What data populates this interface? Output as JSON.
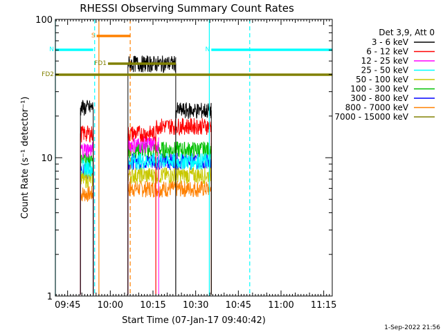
{
  "chart_data": {
    "type": "line",
    "title": "RHESSI Observing Summary Count Rates",
    "xlabel": "Start Time (07-Jan-17 09:40:42)",
    "ylabel": "Count Rate (s⁻¹ detector⁻¹)",
    "y_scale": "log",
    "ylim": [
      1,
      100
    ],
    "xlim_minutes_after_0940": [
      0.7,
      98
    ],
    "x_ticks": [
      "09:45",
      "10:00",
      "10:15",
      "10:30",
      "10:45",
      "11:00",
      "11:15"
    ],
    "y_ticks": [
      "1",
      "10",
      "100"
    ],
    "legend_header": "Det 3,9, Att 0",
    "legend_position": "right, outside plot",
    "series": [
      {
        "name": "3 - 6 keV",
        "color": "#000000",
        "segments": [
          [
            9.5,
            14.0,
            23
          ],
          [
            26.2,
            43.0,
            48
          ],
          [
            43.0,
            55.5,
            22
          ]
        ]
      },
      {
        "name": "6 - 12 keV",
        "color": "#ff0000",
        "segments": [
          [
            9.5,
            14.0,
            15
          ],
          [
            26.2,
            36.0,
            15
          ],
          [
            36.0,
            55.5,
            17
          ]
        ]
      },
      {
        "name": "12 - 25 keV",
        "color": "#ff00ff",
        "segments": [
          [
            9.5,
            14.0,
            11.5
          ],
          [
            26.2,
            37.0,
            12.5
          ]
        ]
      },
      {
        "name": "25 - 50 keV",
        "color": "#00ffff",
        "segments": [
          [
            9.5,
            14.0,
            8.5
          ],
          [
            26.2,
            55.5,
            9.5
          ]
        ]
      },
      {
        "name": "50 - 100 keV",
        "color": "#c8c800",
        "segments": [
          [
            9.5,
            14.0,
            7
          ],
          [
            26.2,
            55.5,
            7.5
          ]
        ]
      },
      {
        "name": "100 - 300 keV",
        "color": "#00c000",
        "segments": [
          [
            9.5,
            14.0,
            9.5
          ],
          [
            26.2,
            55.5,
            11.5
          ]
        ]
      },
      {
        "name": "300 - 800 keV",
        "color": "#0000ff",
        "segments": [
          [
            9.5,
            14.0,
            8
          ],
          [
            26.2,
            55.5,
            9.5
          ]
        ]
      },
      {
        "name": "800 - 7000 keV",
        "color": "#ff8000",
        "segments": [
          [
            9.5,
            14.0,
            5.5
          ],
          [
            26.2,
            55.5,
            6
          ]
        ]
      },
      {
        "name": "7000 - 15000 keV",
        "color": "#808000",
        "segments": []
      }
    ],
    "flags": [
      {
        "label": "S",
        "color": "#ff8000",
        "level": 0.94,
        "start": 15.2,
        "end": 27.0
      },
      {
        "label": "N",
        "color": "#00ffff",
        "level": 0.89,
        "start": 0.7,
        "end": 14.0
      },
      {
        "label": "N",
        "color": "#00ffff",
        "level": 0.89,
        "start": 55.5,
        "end": 98
      },
      {
        "label": "FD1",
        "color": "#808000",
        "level": 0.84,
        "start": 19.2,
        "end": 43.0
      },
      {
        "label": "FD2",
        "color": "#808000",
        "level": 0.8,
        "start": 0.7,
        "end": 98
      }
    ],
    "vlines": [
      {
        "x": 0.7,
        "color": "#00ffff",
        "style": "solid"
      },
      {
        "x": 14.5,
        "color": "#00ffff",
        "style": "dashed"
      },
      {
        "x": 16.0,
        "color": "#ff8000",
        "style": "solid"
      },
      {
        "x": 27.0,
        "color": "#ff8000",
        "style": "dashed"
      },
      {
        "x": 54.8,
        "color": "#00ffff",
        "style": "solid"
      },
      {
        "x": 69.0,
        "color": "#00ffff",
        "style": "dashed"
      }
    ],
    "footer": "1-Sep-2022 21:56"
  }
}
